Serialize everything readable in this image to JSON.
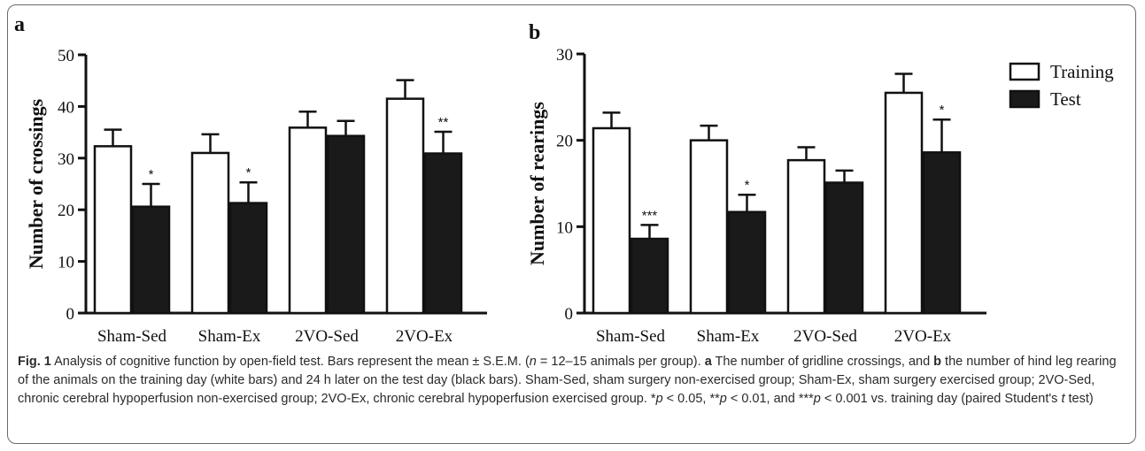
{
  "chart_data": [
    {
      "type": "bar",
      "panel": "a",
      "ylabel": "Number of crossings",
      "categories": [
        "Sham-Sed",
        "Sham-Ex",
        "2VO-Sed",
        "2VO-Ex"
      ],
      "ylim": [
        0,
        50
      ],
      "yticks": [
        "0",
        "10",
        "20",
        "30",
        "40",
        "50"
      ],
      "series": [
        {
          "name": "Training",
          "values": [
            32.3,
            31.0,
            35.9,
            41.5
          ],
          "errors": [
            3.2,
            3.6,
            3.1,
            3.6
          ],
          "color": "#ffffff"
        },
        {
          "name": "Test",
          "values": [
            20.6,
            21.3,
            34.3,
            30.9
          ],
          "errors": [
            4.4,
            4.0,
            2.9,
            4.2
          ],
          "color": "#1a1a1a"
        }
      ],
      "annotations": [
        "*",
        "*",
        "",
        "**"
      ]
    },
    {
      "type": "bar",
      "panel": "b",
      "ylabel": "Number of rearings",
      "categories": [
        "Sham-Sed",
        "Sham-Ex",
        "2VO-Sed",
        "2VO-Ex"
      ],
      "ylim": [
        0,
        30
      ],
      "yticks": [
        "0",
        "10",
        "20",
        "30"
      ],
      "series": [
        {
          "name": "Training",
          "values": [
            21.4,
            20.0,
            17.7,
            25.5
          ],
          "errors": [
            1.8,
            1.7,
            1.5,
            2.2
          ],
          "color": "#ffffff"
        },
        {
          "name": "Test",
          "values": [
            8.6,
            11.7,
            15.1,
            18.6
          ],
          "errors": [
            1.6,
            2.0,
            1.4,
            3.8
          ],
          "color": "#1a1a1a"
        }
      ],
      "annotations": [
        "***",
        "*",
        "",
        "*"
      ],
      "legend": {
        "placement": "top-right",
        "items": [
          "Training",
          "Test"
        ]
      }
    }
  ],
  "caption": {
    "fig_label": "Fig. 1",
    "text": " Analysis of cognitive function by open-field test. Bars represent the mean ± S.E.M. (",
    "n_var": "n",
    "n_rest": " = 12–15 animals per group). ",
    "a_label": "a",
    "a_text": " The number of gridline crossings, and ",
    "b_label": "b",
    "b_text": " the number of hind leg rearing of the animals on the training day (white bars) and 24 h later on the test day (black bars). Sham-Sed, sham surgery non-exercised group; Sham-Ex, sham surgery exercised group; 2VO-Sed, chronic cerebral hypoperfusion non-exercised group; 2VO-Ex, chronic cerebral hypoperfusion exercised group. *",
    "p1": "p",
    "t1": " < 0.05, **",
    "p2": "p",
    "t2": " < 0.01, and ***",
    "p3": "p",
    "t3": " < 0.001 vs. training day (paired Student's ",
    "tvar": "t",
    "t4": " test)"
  }
}
